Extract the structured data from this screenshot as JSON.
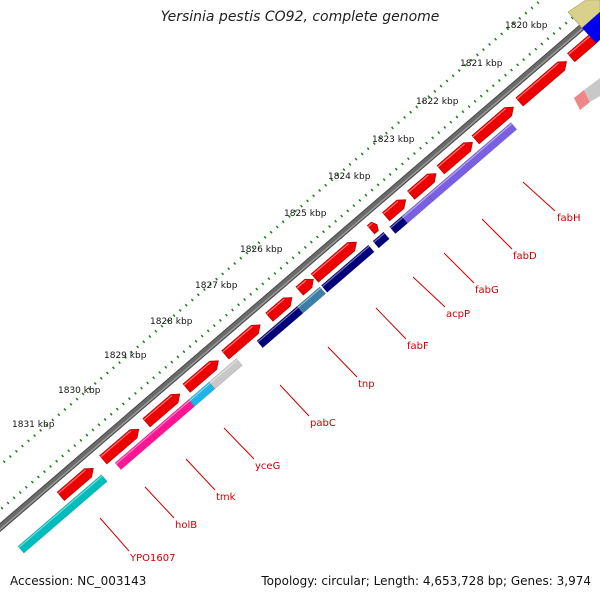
{
  "title": "Yersinia pestis CO92, complete genome",
  "footer": {
    "accession": "Accession: NC_003143",
    "summary": "Topology: circular; Length: 4,653,728 bp; Genes: 3,974"
  },
  "colors": {
    "backbone": "#6a6a6a",
    "tick": "#1f7a1f",
    "gene_forward": "#ee0000",
    "label": "#cc0000"
  },
  "scale_labels": [
    "1820 kbp",
    "1821 kbp",
    "1822 kbp",
    "1823 kbp",
    "1824 kbp",
    "1825 kbp",
    "1826 kbp",
    "1827 kbp",
    "1828 kbp",
    "1829 kbp",
    "1830 kbp",
    "1831 kbp"
  ],
  "gene_labels": [
    "fabH",
    "fabD",
    "fabG",
    "acpP",
    "fabF",
    "tnp",
    "pabC",
    "yceG",
    "tmk",
    "holB",
    "YPO1607"
  ],
  "category_colors": [
    "#d9d08c",
    "#0000ee",
    "#ee8888",
    "#c8c8c8",
    "#7a5fe0",
    "#00007a",
    "#3b7fa6",
    "#ff1493",
    "#1eb4e6",
    "#00bcbc"
  ]
}
